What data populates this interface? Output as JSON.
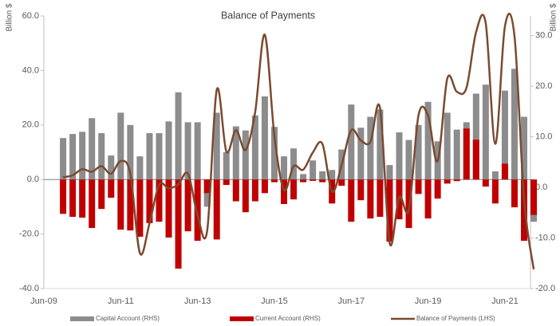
{
  "chart_data": {
    "type": "bar",
    "title": "Balance of Payments",
    "y_label": "Billion $",
    "y2_label": "Billion $",
    "categories": [
      "Jun-09",
      null,
      null,
      null,
      null,
      null,
      null,
      null,
      "Jun-11",
      null,
      null,
      null,
      null,
      null,
      null,
      null,
      "Jun-13",
      null,
      null,
      null,
      null,
      null,
      null,
      null,
      "Jun-15",
      null,
      null,
      null,
      null,
      null,
      null,
      null,
      "Jun-17",
      null,
      null,
      null,
      null,
      null,
      null,
      null,
      "Jun-19",
      null,
      null,
      null,
      null,
      null,
      null,
      null,
      "Jun-21",
      null,
      null,
      null
    ],
    "ylim": [
      -40,
      60
    ],
    "yticks": [
      {
        "value": 60,
        "label": "60.0"
      },
      {
        "value": 40,
        "label": "40.0"
      },
      {
        "value": 20,
        "label": "20.0"
      },
      {
        "value": 0,
        "label": "0.0"
      },
      {
        "value": -20,
        "label": "-20.0"
      },
      {
        "value": -40,
        "label": "-40.0"
      }
    ],
    "y2lim": [
      -20,
      33.9
    ],
    "y2ticks": [
      {
        "value": 30,
        "label": "30.0"
      },
      {
        "value": 20,
        "label": "20.0"
      },
      {
        "value": 10,
        "label": "10.0"
      },
      {
        "value": 0,
        "label": "0.0"
      },
      {
        "value": -10,
        "label": "-10.0"
      },
      {
        "value": -20,
        "label": "-20.0"
      }
    ],
    "legend": "bottom",
    "series": [
      {
        "name": "Capital Account (RHS)",
        "type": "bar",
        "color": "#8c8c8c",
        "values": [
          null,
          null,
          15.2,
          16.7,
          17.5,
          22.5,
          17,
          8.8,
          24.5,
          20,
          8.5,
          17,
          17,
          21.3,
          32,
          21,
          21,
          -10,
          24.5,
          10,
          19.5,
          18,
          23.5,
          30.5,
          19.3,
          8.5,
          11.4,
          2,
          7,
          3,
          3.5,
          11,
          27.5,
          19,
          23,
          25.7,
          5.3,
          17.3,
          14.5,
          20,
          28.5,
          14,
          24.5,
          18.3,
          21,
          31.5,
          34.8,
          3,
          32.6,
          40.6,
          23,
          -15.5
        ]
      },
      {
        "name": "Current Account (RHS)",
        "type": "bar",
        "color": "#c00000",
        "values": [
          null,
          null,
          -12.6,
          -13.7,
          -14,
          -17.8,
          -10.8,
          -6.7,
          -18.4,
          -18.7,
          -21,
          -16,
          -15.5,
          -21.3,
          -32.7,
          -19,
          -22.5,
          -5,
          -22,
          -2,
          -8,
          -12,
          -8,
          -5,
          -1,
          -9,
          -7.3,
          -1,
          -0.5,
          -1,
          -8.8,
          -2.3,
          -15.5,
          -7.6,
          -14.3,
          -13.7,
          -22.8,
          -14.6,
          -17.8,
          -5.3,
          -14.3,
          -7,
          -1.5,
          -0.6,
          18.7,
          14.6,
          -2.6,
          -8.8,
          5.8,
          -10.2,
          -22.5,
          -13
        ]
      },
      {
        "name": "Balance of Payments (LHS)",
        "type": "line",
        "axis": "y2",
        "color": "#7b4a2f",
        "values": [
          null,
          null,
          2.0,
          2.4,
          3.6,
          3.1,
          4.2,
          2.7,
          5.2,
          2.7,
          -13,
          -7.1,
          0.5,
          -0.2,
          0.6,
          2.7,
          -5.5,
          -8.6,
          19.3,
          7.1,
          11.3,
          7.4,
          14.9,
          30.2,
          10.2,
          -0.5,
          4.2,
          3.5,
          6.9,
          8.6,
          -0.8,
          4.4,
          11.3,
          9.3,
          9.0,
          15.7,
          -11,
          -1.9,
          -4.4,
          14.2,
          14.2,
          5.2,
          21.5,
          18.9,
          19.7,
          30.7,
          32.5,
          8.6,
          31.8,
          29.9,
          -2.4,
          -16.2
        ]
      }
    ]
  }
}
